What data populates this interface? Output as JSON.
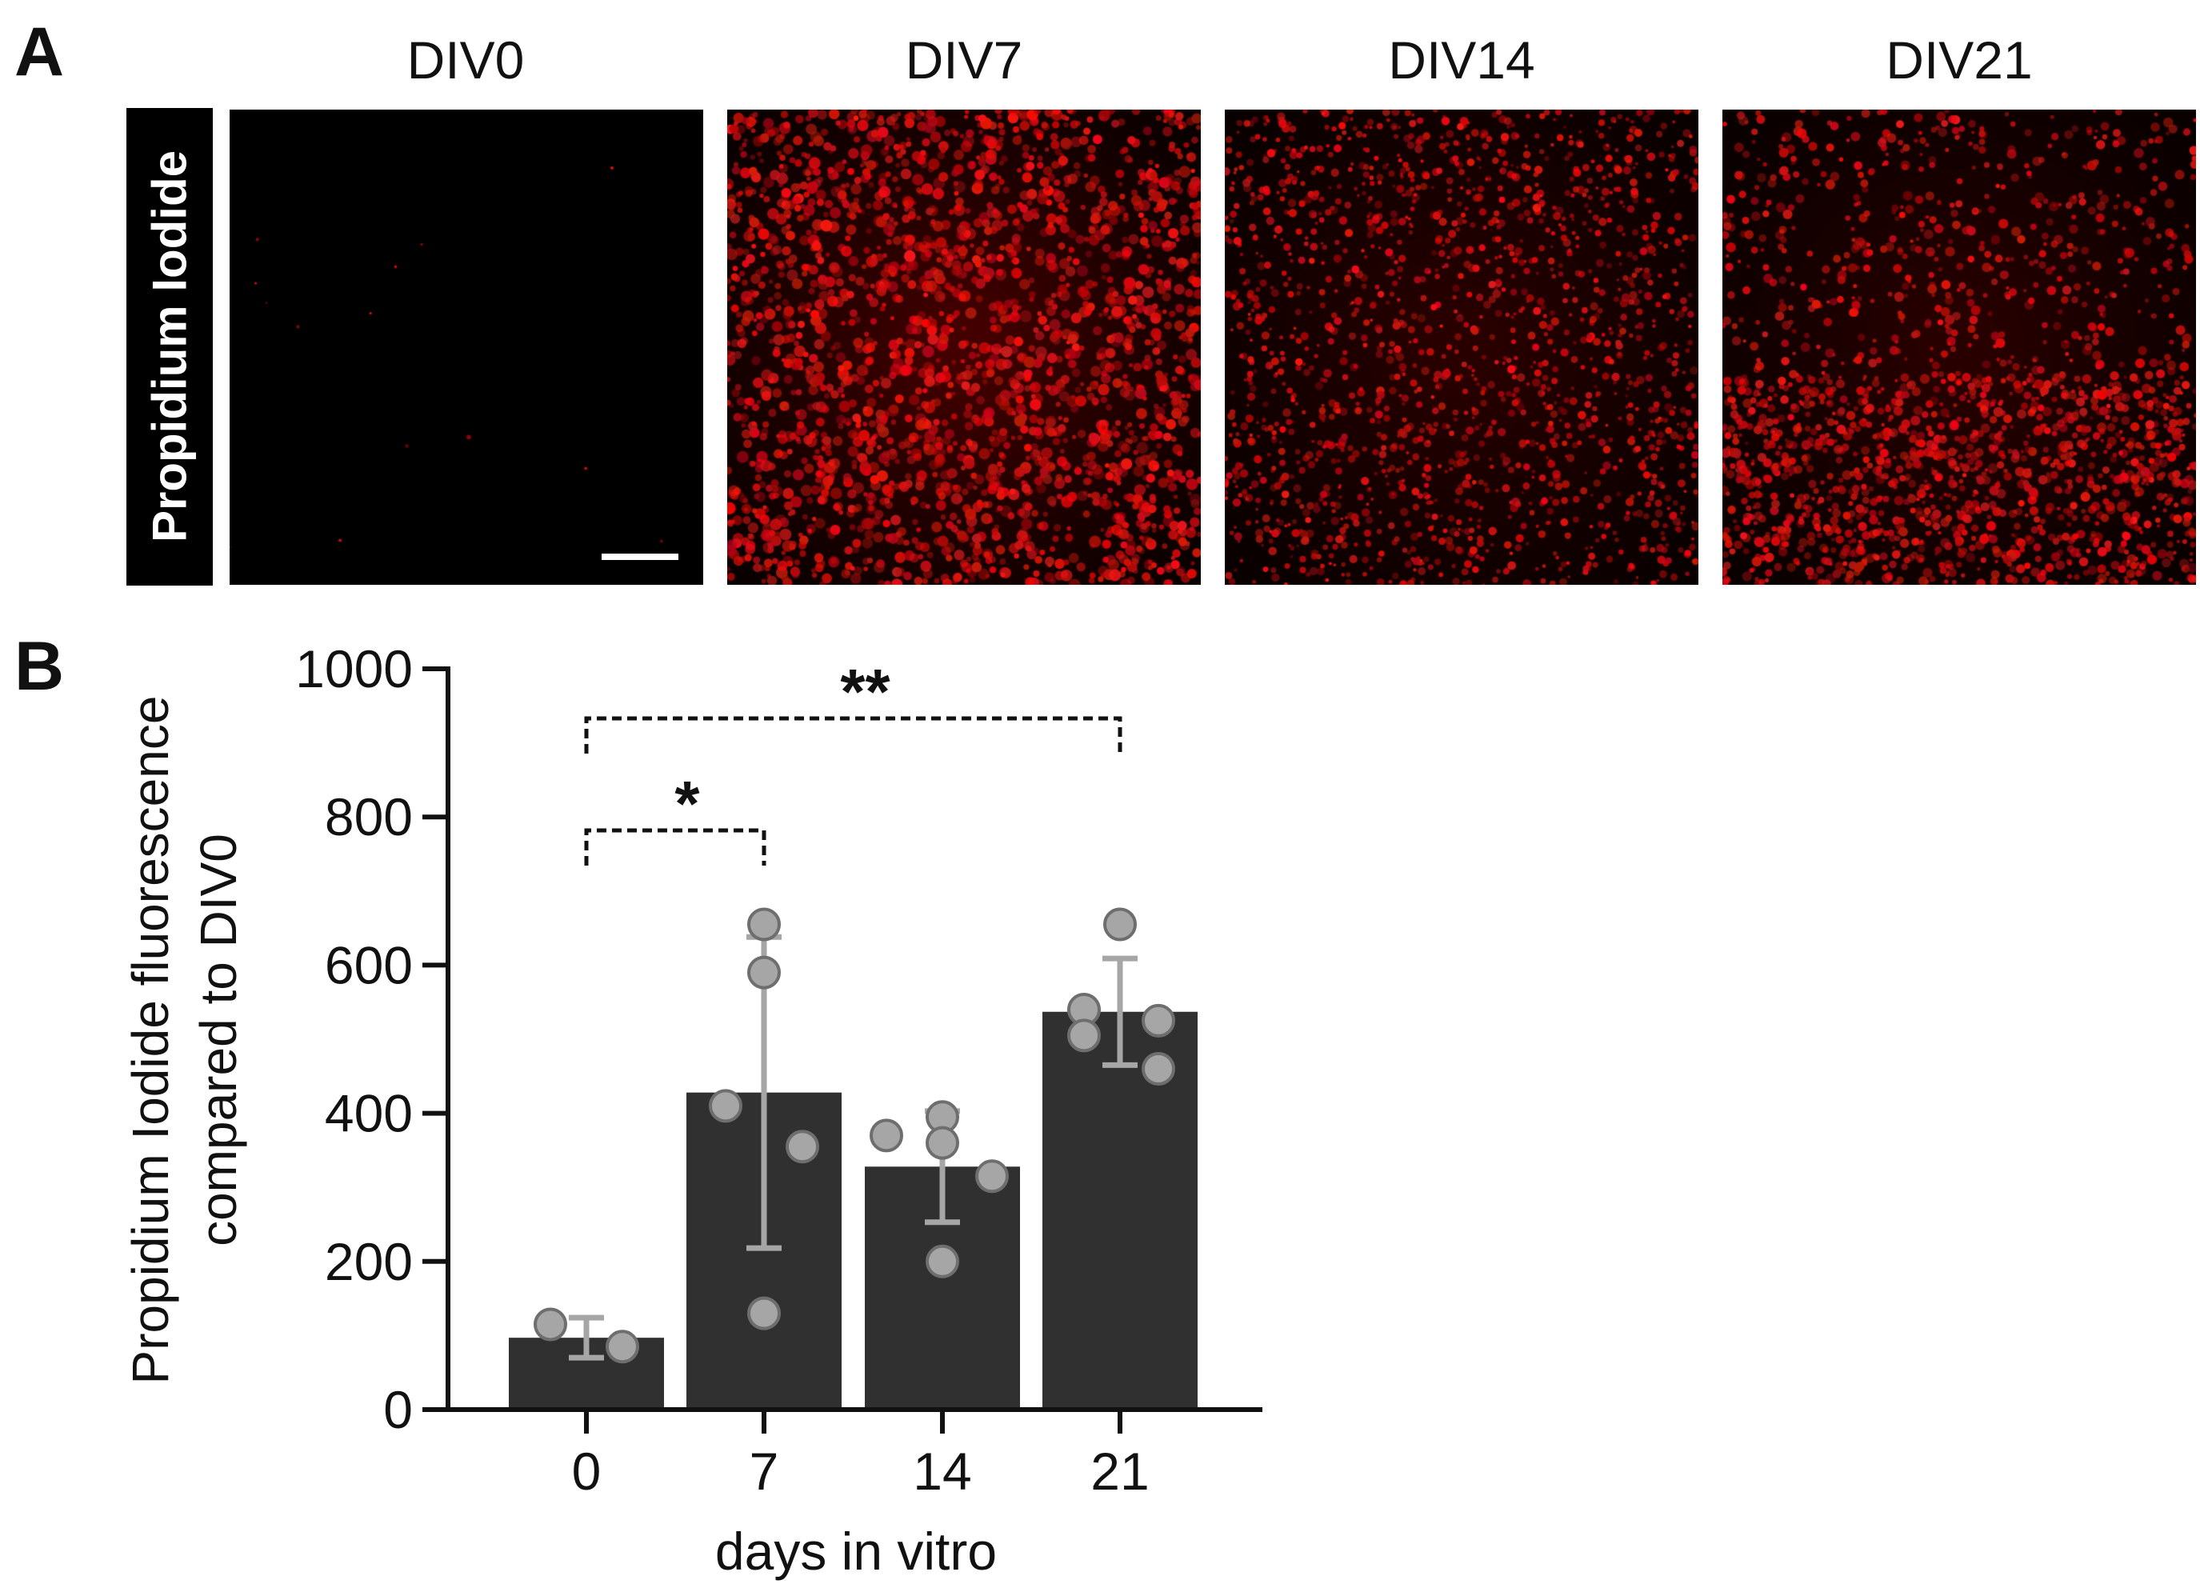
{
  "figure": {
    "panel_a_letter": "A",
    "panel_b_letter": "B",
    "stain_label": "Propidium Iodide",
    "columns": [
      "DIV0",
      "DIV7",
      "DIV14",
      "DIV21"
    ],
    "signal_color": "#e0161a"
  },
  "chart_data": {
    "type": "bar",
    "categories": [
      "0",
      "7",
      "14",
      "21"
    ],
    "values": [
      97,
      428,
      328,
      537
    ],
    "sd": [
      27,
      210,
      75,
      72
    ],
    "points": [
      [
        115,
        85
      ],
      [
        655,
        590,
        410,
        355,
        130
      ],
      [
        370,
        395,
        360,
        315,
        200
      ],
      [
        655,
        540,
        505,
        525,
        460
      ]
    ],
    "xlabel": "days in vitro",
    "ylabel_lines": [
      "Propidium Iodide fluorescence",
      "compared to DIV0"
    ],
    "yticks": [
      0,
      200,
      400,
      600,
      800,
      1000
    ],
    "ylim": [
      0,
      1000
    ],
    "significance": [
      {
        "from": "0",
        "to": "7",
        "label": "*"
      },
      {
        "from": "0",
        "to": "21",
        "label": "**"
      }
    ],
    "bar_color": "#303030",
    "point_color": "#a6a6a6",
    "errorbar_color": "#a6a6a6",
    "grid": false,
    "legend": "none"
  }
}
